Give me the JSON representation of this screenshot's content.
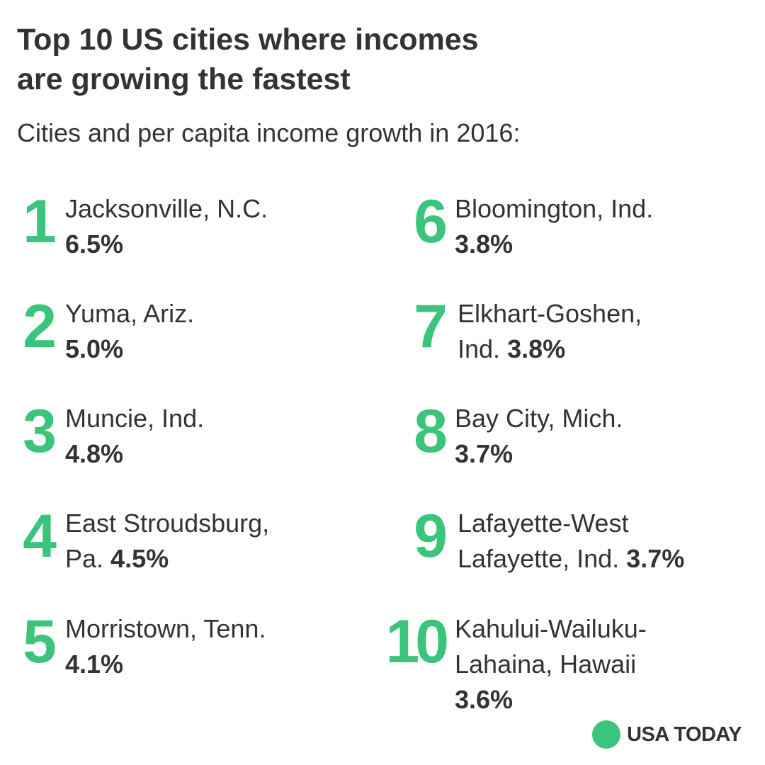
{
  "header": {
    "title_line1": "Top 10 US cities where incomes",
    "title_line2": "are growing the fastest",
    "subtitle": "Cities and per capita income growth in 2016:"
  },
  "colors": {
    "accent": "#3cc47c",
    "text": "#333333",
    "background": "#ffffff"
  },
  "rankings": [
    {
      "rank": "1",
      "line1": "Jacksonville, N.C.",
      "line2": "",
      "growth": "6.5%"
    },
    {
      "rank": "2",
      "line1": "Yuma, Ariz.",
      "line2": "",
      "growth": "5.0%"
    },
    {
      "rank": "3",
      "line1": "Muncie, Ind.",
      "line2": "",
      "growth": "4.8%"
    },
    {
      "rank": "4",
      "line1": "East Stroudsburg,",
      "line2": "Pa. ",
      "growth": "4.5%"
    },
    {
      "rank": "5",
      "line1": "Morristown, Tenn.",
      "line2": "",
      "growth": "4.1%"
    },
    {
      "rank": "6",
      "line1": "Bloomington, Ind.",
      "line2": "",
      "growth": "3.8%"
    },
    {
      "rank": "7",
      "line1": "Elkhart-Goshen,",
      "line2": "Ind. ",
      "growth": "3.8%"
    },
    {
      "rank": "8",
      "line1": "Bay City, Mich.",
      "line2": "",
      "growth": "3.7%"
    },
    {
      "rank": "9",
      "line1": "Lafayette-West",
      "line2": "Lafayette, Ind. ",
      "growth": "3.7%"
    },
    {
      "rank": "10",
      "line1": "Kahului-Wailuku-",
      "line2": "Lahaina, Hawaii",
      "growth": "3.6%"
    }
  ],
  "logo": {
    "icon": "green-dot-icon",
    "text": "USA TODAY"
  }
}
